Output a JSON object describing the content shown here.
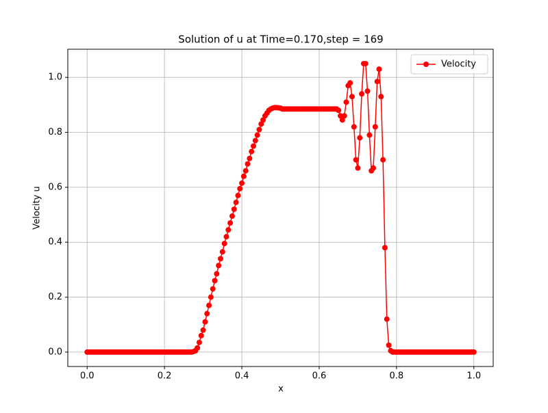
{
  "chart_data": {
    "type": "line",
    "title": "Solution of u at Time=0.170,step = 169",
    "xlabel": "x",
    "ylabel": "Velocity u",
    "x": [
      0,
      0.005,
      0.01,
      0.015,
      0.02,
      0.025,
      0.03,
      0.035,
      0.04,
      0.045,
      0.05,
      0.055,
      0.06,
      0.065,
      0.07,
      0.075,
      0.08,
      0.085,
      0.09,
      0.095,
      0.1,
      0.105,
      0.11,
      0.115,
      0.12,
      0.125,
      0.13,
      0.135,
      0.14,
      0.145,
      0.15,
      0.155,
      0.16,
      0.165,
      0.17,
      0.175,
      0.18,
      0.185,
      0.19,
      0.195,
      0.2,
      0.205,
      0.21,
      0.215,
      0.22,
      0.225,
      0.23,
      0.235,
      0.24,
      0.245,
      0.25,
      0.255,
      0.26,
      0.265,
      0.27,
      0.275,
      0.28,
      0.285,
      0.29,
      0.295,
      0.3,
      0.305,
      0.31,
      0.315,
      0.32,
      0.325,
      0.33,
      0.335,
      0.34,
      0.345,
      0.35,
      0.355,
      0.36,
      0.365,
      0.37,
      0.375,
      0.38,
      0.385,
      0.39,
      0.395,
      0.4,
      0.405,
      0.41,
      0.415,
      0.42,
      0.425,
      0.43,
      0.435,
      0.44,
      0.445,
      0.45,
      0.455,
      0.46,
      0.465,
      0.47,
      0.475,
      0.48,
      0.485,
      0.49,
      0.495,
      0.5,
      0.505,
      0.51,
      0.515,
      0.52,
      0.525,
      0.53,
      0.535,
      0.54,
      0.545,
      0.55,
      0.555,
      0.56,
      0.565,
      0.57,
      0.575,
      0.58,
      0.585,
      0.59,
      0.595,
      0.6,
      0.605,
      0.61,
      0.615,
      0.62,
      0.625,
      0.63,
      0.635,
      0.64,
      0.645,
      0.65,
      0.655,
      0.66,
      0.665,
      0.67,
      0.675,
      0.68,
      0.685,
      0.69,
      0.695,
      0.7,
      0.705,
      0.71,
      0.715,
      0.72,
      0.725,
      0.73,
      0.735,
      0.74,
      0.745,
      0.75,
      0.755,
      0.76,
      0.765,
      0.77,
      0.775,
      0.78,
      0.785,
      0.79,
      0.795,
      0.8,
      0.805,
      0.81,
      0.815,
      0.82,
      0.825,
      0.83,
      0.835,
      0.84,
      0.845,
      0.85,
      0.855,
      0.86,
      0.865,
      0.87,
      0.875,
      0.88,
      0.885,
      0.89,
      0.895,
      0.9,
      0.905,
      0.91,
      0.915,
      0.92,
      0.925,
      0.93,
      0.935,
      0.94,
      0.945,
      0.95,
      0.955,
      0.96,
      0.965,
      0.97,
      0.975,
      0.98,
      0.985,
      0.99,
      0.995,
      1
    ],
    "series": [
      {
        "name": "Velocity",
        "color": "#ff0000",
        "values": [
          0,
          0,
          0,
          0,
          0,
          0,
          0,
          0,
          0,
          0,
          0,
          0,
          0,
          0,
          0,
          0,
          0,
          0,
          0,
          0,
          0,
          0,
          0,
          0,
          0,
          0,
          0,
          0,
          0,
          0,
          0,
          0,
          0,
          0,
          0,
          0,
          0,
          0,
          0,
          0,
          0,
          0,
          0,
          0,
          0,
          0,
          0,
          0,
          0,
          0,
          0,
          0,
          0,
          0,
          0,
          0.002,
          0.005,
          0.015,
          0.035,
          0.06,
          0.08,
          0.11,
          0.14,
          0.17,
          0.2,
          0.23,
          0.26,
          0.285,
          0.315,
          0.34,
          0.365,
          0.395,
          0.42,
          0.445,
          0.47,
          0.495,
          0.52,
          0.545,
          0.57,
          0.595,
          0.615,
          0.64,
          0.66,
          0.685,
          0.705,
          0.73,
          0.75,
          0.77,
          0.79,
          0.81,
          0.83,
          0.845,
          0.86,
          0.87,
          0.88,
          0.885,
          0.888,
          0.89,
          0.89,
          0.889,
          0.888,
          0.885,
          0.885,
          0.885,
          0.885,
          0.885,
          0.885,
          0.885,
          0.885,
          0.885,
          0.885,
          0.885,
          0.885,
          0.885,
          0.885,
          0.885,
          0.885,
          0.885,
          0.885,
          0.885,
          0.885,
          0.885,
          0.885,
          0.885,
          0.885,
          0.885,
          0.885,
          0.885,
          0.885,
          0.885,
          0.88,
          0.86,
          0.845,
          0.86,
          0.91,
          0.97,
          0.98,
          0.93,
          0.82,
          0.7,
          0.67,
          0.78,
          0.94,
          1.05,
          1.05,
          0.95,
          0.79,
          0.66,
          0.67,
          0.82,
          0.985,
          1.03,
          0.93,
          0.7,
          0.38,
          0.12,
          0.025,
          0.005,
          0,
          0,
          0,
          0,
          0,
          0,
          0,
          0,
          0,
          0,
          0,
          0,
          0,
          0,
          0,
          0,
          0,
          0,
          0,
          0,
          0,
          0,
          0,
          0,
          0,
          0,
          0,
          0,
          0,
          0,
          0,
          0,
          0,
          0,
          0,
          0,
          0,
          0,
          0,
          0,
          0,
          0,
          0
        ]
      }
    ],
    "xlim": [
      -0.05,
      1.05
    ],
    "ylim": [
      -0.0525,
      1.1025
    ],
    "xticks": [
      {
        "value": 0,
        "label": "0.0"
      },
      0.2,
      0.4,
      0.6,
      0.8,
      {
        "value": 1,
        "label": "1.0"
      }
    ],
    "yticks": [
      {
        "value": 0,
        "label": "0.0"
      },
      0.2,
      0.4,
      0.6,
      0.8,
      {
        "value": 1,
        "label": "1.0"
      }
    ],
    "grid": true,
    "legend": "upper right"
  }
}
